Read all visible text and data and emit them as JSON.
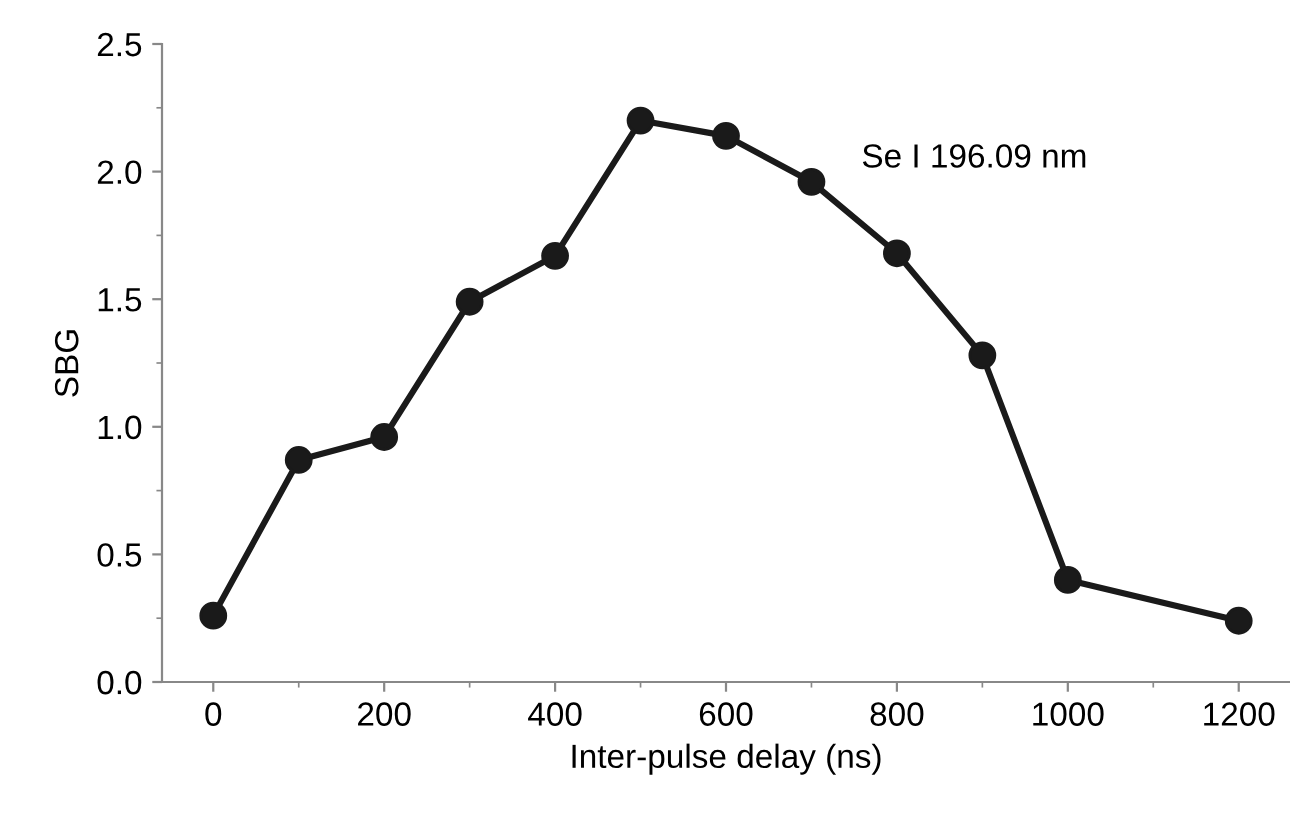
{
  "chart_data": {
    "type": "line",
    "xlabel": "Inter-pulse delay (ns)",
    "ylabel": "SBG",
    "x": [
      0,
      100,
      200,
      300,
      400,
      500,
      600,
      700,
      800,
      900,
      1000,
      1200
    ],
    "series": [
      {
        "color": "#1a1a1a",
        "values": [
          0.26,
          0.87,
          0.96,
          1.49,
          1.67,
          2.2,
          2.14,
          1.96,
          1.68,
          1.28,
          0.4,
          0.24
        ]
      }
    ],
    "xlim": [
      -60,
      1260
    ],
    "ylim": [
      0,
      2.5
    ],
    "xticks": [
      0,
      200,
      400,
      600,
      800,
      1000,
      1200
    ],
    "yticks": [
      {
        "value": 0,
        "label": "0.0"
      },
      {
        "value": 0.5,
        "label": "0.5"
      },
      {
        "value": 1,
        "label": "1.0"
      },
      {
        "value": 1.5,
        "label": "1.5"
      },
      {
        "value": 2,
        "label": "2.0"
      },
      {
        "value": 2.5,
        "label": "2.5"
      }
    ],
    "marker": "circle",
    "line_style": "solid",
    "grid": false,
    "legend": false,
    "annotations": [
      "Se I 196.09 nm"
    ]
  }
}
